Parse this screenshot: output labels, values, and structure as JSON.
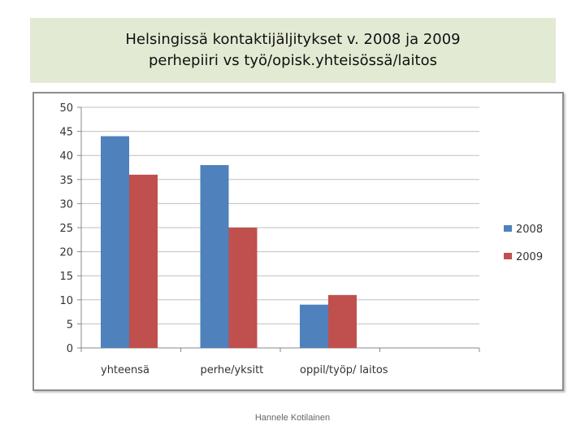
{
  "slide": {
    "title_lines": [
      "Helsingissä kontaktijäljitykset v. 2008 ja 2009",
      "perhepiiri vs  työ/opisk.yhteisössä/laitos"
    ],
    "footer": "Hannele Kotilainen"
  },
  "colors": {
    "title_bg": "#e2ead3",
    "series_2008": "#4f81bd",
    "series_2009": "#c0504d",
    "gridline": "#bfbfbf"
  },
  "chart_data": {
    "type": "bar",
    "categories": [
      "yhteensä",
      "perhe/yksitt",
      "oppil/työp/ laitos",
      ""
    ],
    "series": [
      {
        "name": "2008",
        "values": [
          44,
          38,
          9,
          null
        ]
      },
      {
        "name": "2009",
        "values": [
          36,
          25,
          11,
          null
        ]
      }
    ],
    "ylim": [
      0,
      50
    ],
    "yticks": [
      0,
      5,
      10,
      15,
      20,
      25,
      30,
      35,
      40,
      45,
      50
    ],
    "grid": true,
    "legend": "right"
  }
}
